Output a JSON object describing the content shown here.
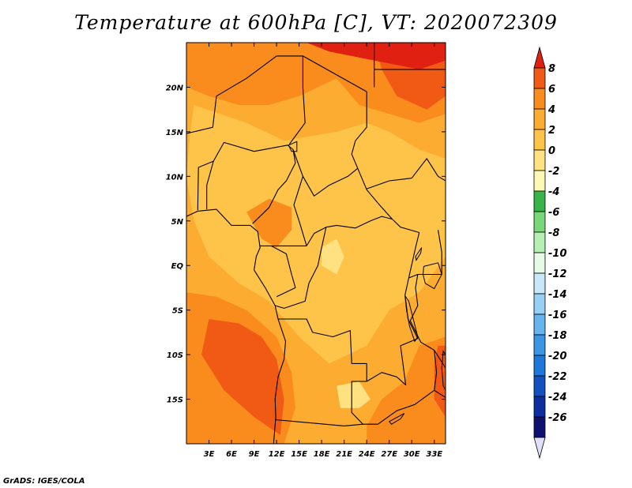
{
  "title": "Temperature at 600hPa [C], VT: 2020072309",
  "credit": "GrADS: IGES/COLA",
  "map": {
    "lon_range": [
      0,
      34.5
    ],
    "lat_range": [
      -20,
      25
    ],
    "x_ticks": [
      {
        "value": 3,
        "label": "3E"
      },
      {
        "value": 6,
        "label": "6E"
      },
      {
        "value": 9,
        "label": "9E"
      },
      {
        "value": 12,
        "label": "12E"
      },
      {
        "value": 15,
        "label": "15E"
      },
      {
        "value": 18,
        "label": "18E"
      },
      {
        "value": 21,
        "label": "21E"
      },
      {
        "value": 24,
        "label": "24E"
      },
      {
        "value": 27,
        "label": "27E"
      },
      {
        "value": 30,
        "label": "30E"
      },
      {
        "value": 33,
        "label": "33E"
      }
    ],
    "y_ticks": [
      {
        "value": 20,
        "label": "20N"
      },
      {
        "value": 15,
        "label": "15N"
      },
      {
        "value": 10,
        "label": "10N"
      },
      {
        "value": 5,
        "label": "5N"
      },
      {
        "value": 0,
        "label": "EQ"
      },
      {
        "value": -5,
        "label": "5S"
      },
      {
        "value": -10,
        "label": "10S"
      },
      {
        "value": -15,
        "label": "15S"
      }
    ]
  },
  "colorbar": {
    "labels": [
      "8",
      "6",
      "4",
      "2",
      "0",
      "-2",
      "-4",
      "-6",
      "-8",
      "-10",
      "-12",
      "-14",
      "-16",
      "-18",
      "-20",
      "-22",
      "-24",
      "-26"
    ],
    "colors_top_to_bottom": [
      "#e02010",
      "#f05a14",
      "#fa8c1e",
      "#fdac32",
      "#fec44a",
      "#fee282",
      "#fff8b4",
      "#38b448",
      "#78d878",
      "#b4f0b4",
      "#e6fae6",
      "#c8e8fa",
      "#96d0f4",
      "#68b4ee",
      "#3c96e6",
      "#1e78dc",
      "#1450c0",
      "#0c2ea0",
      "#101070",
      "#e0e0fa"
    ]
  },
  "colors": {
    "temp_7": "#e02010",
    "temp_5": "#f05a14",
    "temp_3": "#fa8c1e",
    "temp_1": "#fdac32",
    "temp_0": "#fec44a",
    "temp_m1": "#fee282",
    "border": "#000000"
  }
}
